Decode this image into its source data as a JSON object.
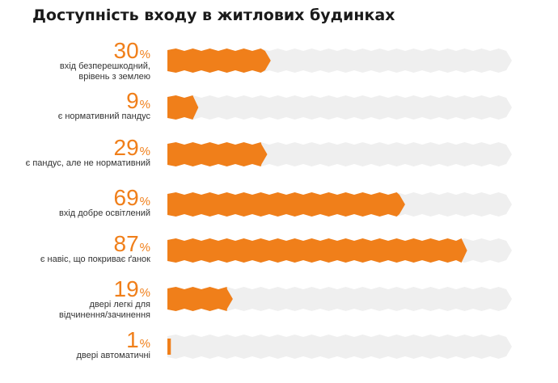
{
  "chart_data": {
    "type": "bar",
    "orientation": "horizontal",
    "title": "Доступність входу в житлових будинках",
    "unit": "%",
    "xlim": [
      0,
      100
    ],
    "grid": false,
    "categories": [
      [
        "вхід безперешкодний,",
        "врівень з землею"
      ],
      [
        "є нормативний пандус"
      ],
      [
        "є пандус, але не нормативний"
      ],
      [
        "вхід добре освітлений"
      ],
      [
        "є навіс, що покриває ґанок"
      ],
      [
        "двері легкі для",
        "відчинення/зачинення"
      ],
      [
        "двері автоматичні"
      ]
    ],
    "values": [
      30,
      9,
      29,
      69,
      87,
      19,
      1
    ]
  },
  "colors": {
    "bar": "#f07f1a",
    "track": "#efefef",
    "value_text": "#f07f1a",
    "label_text": "#333333",
    "title_text": "#1a1a1a"
  }
}
